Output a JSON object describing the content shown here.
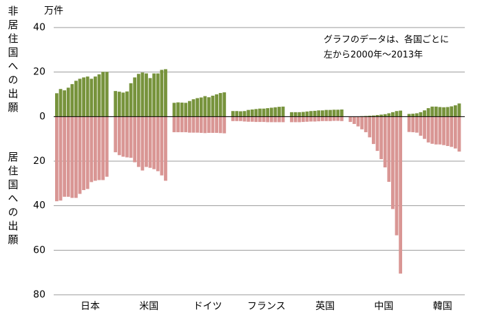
{
  "chart_data": {
    "type": "grouped-diverging-bar",
    "y_label": "万件",
    "annotation": [
      "グラフのデータは、各国ごとに",
      "左から2000年～2013年"
    ],
    "categories": [
      "日本",
      "米国",
      "ドイツ",
      "フランス",
      "英国",
      "中国",
      "韓国"
    ],
    "series": [
      {
        "name": "非居住国への出願",
        "color": "#77933c",
        "values": [
          [
            10.5,
            12.4,
            11.8,
            13,
            14.6,
            16.1,
            17,
            17.6,
            18,
            17,
            18,
            19,
            20.1,
            20.1
          ],
          [
            11.5,
            11.2,
            10.8,
            11.3,
            15,
            17.6,
            19.2,
            19.8,
            19.4,
            17.3,
            19.4,
            19.4,
            21,
            21.3
          ],
          [
            6.2,
            6.4,
            6.3,
            6.2,
            7,
            7.8,
            8.3,
            8.6,
            9.2,
            8.7,
            9.4,
            10,
            10.6,
            10.9
          ],
          [
            2.5,
            2.5,
            2.4,
            2.5,
            3,
            3.2,
            3.4,
            3.6,
            3.6,
            3.8,
            4,
            4.2,
            4.4,
            4.5
          ],
          [
            2,
            2,
            2,
            2.1,
            2.3,
            2.5,
            2.6,
            2.8,
            2.8,
            3,
            3,
            3.1,
            3.1,
            3.2
          ],
          [
            0.1,
            0.1,
            0.1,
            0.2,
            0.3,
            0.4,
            0.5,
            0.7,
            0.9,
            1.1,
            1.5,
            2,
            2.5,
            2.7
          ],
          [
            1.2,
            1.3,
            1.5,
            2,
            2.8,
            3.8,
            4.5,
            4.5,
            4.3,
            4.2,
            4.3,
            4.6,
            5.1,
            5.9
          ]
        ]
      },
      {
        "name": "居住国への出願",
        "color": "#d99694",
        "values": [
          [
            -38,
            -37.7,
            -36,
            -36,
            -36.5,
            -36.5,
            -34.7,
            -33,
            -32.5,
            -29.4,
            -28.8,
            -28.5,
            -28.5,
            -27
          ],
          [
            -16,
            -17.3,
            -18,
            -18.3,
            -18.5,
            -20.5,
            -22.6,
            -24.2,
            -22.6,
            -23,
            -23.6,
            -24.5,
            -26.4,
            -28.8
          ],
          [
            -7,
            -7,
            -7,
            -7,
            -7.2,
            -7.2,
            -7.2,
            -7.3,
            -7.4,
            -7.3,
            -7.3,
            -7.3,
            -7.4,
            -7.5
          ],
          [
            -2,
            -2,
            -2,
            -2.2,
            -2.3,
            -2.3,
            -2.4,
            -2.4,
            -2.4,
            -2.5,
            -2.5,
            -2.5,
            -2.5,
            -2.5
          ],
          [
            -2.5,
            -2.5,
            -2.5,
            -2.4,
            -2.3,
            -2.2,
            -2.2,
            -2.1,
            -2,
            -2,
            -2,
            -1.9,
            -1.9,
            -2
          ],
          [
            -2.4,
            -3.3,
            -4.4,
            -5.7,
            -7,
            -9.3,
            -12.3,
            -15.4,
            -19.1,
            -22.8,
            -29.3,
            -41.5,
            -53.3,
            -70.5
          ],
          [
            -6.9,
            -7,
            -7.2,
            -8.6,
            -10,
            -11.6,
            -12.2,
            -12.5,
            -12.5,
            -12.8,
            -13.2,
            -13.6,
            -14.3,
            -15.7
          ]
        ]
      }
    ],
    "ylim": [
      -80,
      40
    ],
    "yticks": [
      {
        "value": -80,
        "label": "80"
      },
      {
        "value": -60,
        "label": "60"
      },
      {
        "value": -40,
        "label": "40"
      },
      {
        "value": -20,
        "label": "20"
      },
      0,
      20,
      40
    ],
    "grid": true
  }
}
